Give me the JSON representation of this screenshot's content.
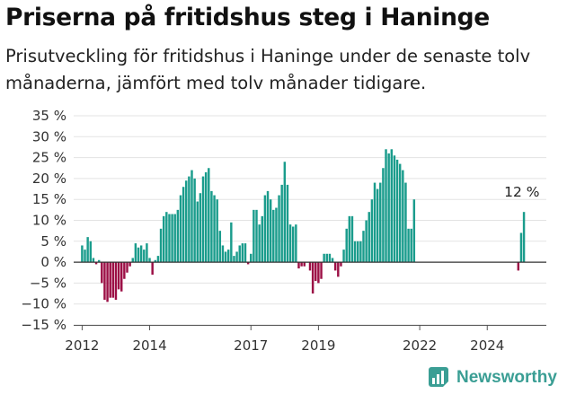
{
  "title": "Priserna på fritidshus steg i Haninge",
  "subtitle": "Prisutveckling för fritidshus i Haninge under de senaste tolv månaderna, jämfört med tolv månader tidigare.",
  "brand": {
    "name": "Newsworthy",
    "icon": "newsworthy-logo-icon",
    "color": "#3a9e94"
  },
  "chart_data": {
    "type": "bar",
    "ylim": [
      -15,
      35
    ],
    "yticks": [
      35,
      30,
      25,
      20,
      15,
      10,
      5,
      0,
      -5,
      -10,
      -15
    ],
    "ytick_labels": [
      "35 %",
      "30 %",
      "25 %",
      "20 %",
      "15 %",
      "10 %",
      "5 %",
      "0 %",
      "−5 %",
      "−10 %",
      "−15 %"
    ],
    "xlim": [
      2011.75,
      2025.75
    ],
    "xticks": [
      {
        "label": "2012",
        "x": 2012.0
      },
      {
        "label": "2014",
        "x": 2014.0
      },
      {
        "label": "2017",
        "x": 2017.0
      },
      {
        "label": "2019",
        "x": 2019.0
      },
      {
        "label": "2022",
        "x": 2022.0
      },
      {
        "label": "2024",
        "x": 2024.0
      }
    ],
    "grid": true,
    "positive_color": "#1a9c8c",
    "negative_color": "#9c0f45",
    "annotation": {
      "text": "12 %",
      "x": 2025.08,
      "y": 12
    },
    "series": [
      {
        "x": 2012.0,
        "values": [
          4,
          3,
          6,
          5,
          1,
          -0.5,
          0.5,
          -5,
          -9,
          -9.5,
          -8.5,
          -8.5,
          -9,
          -6.5,
          -7,
          -4,
          -2.5,
          -1,
          1,
          4.5,
          3.5,
          4,
          3,
          4.5,
          1,
          -3,
          0.5,
          1.5,
          8,
          11,
          12,
          11.5,
          11.5,
          11.5,
          12.5,
          16,
          18,
          19.5,
          20.5,
          22,
          20,
          14.5,
          16.5,
          20.5,
          21.5,
          22.5,
          17,
          16,
          15,
          7.5,
          4,
          2.5,
          3,
          9.5,
          1.5,
          2.5,
          4,
          4.5,
          4.5,
          -0.5,
          2,
          12.5,
          12.5,
          9,
          11,
          16,
          17,
          15,
          12.5,
          13,
          16,
          18.5,
          24,
          18.5,
          9,
          8.5,
          9,
          -1.5,
          -1,
          -1,
          0,
          -2,
          -7.5,
          -4.5,
          -5,
          -4,
          2,
          2,
          2,
          1,
          -2,
          -3.5,
          -1,
          3,
          8,
          11,
          11,
          5,
          5,
          5,
          7.5,
          10,
          12,
          15,
          19,
          17.5,
          19,
          22.5,
          27,
          26,
          27,
          25.5,
          24.5,
          23.5,
          22,
          19,
          8,
          8,
          15
        ]
      },
      {
        "x": 2024.92,
        "values": [
          -2,
          7,
          12
        ]
      }
    ]
  }
}
